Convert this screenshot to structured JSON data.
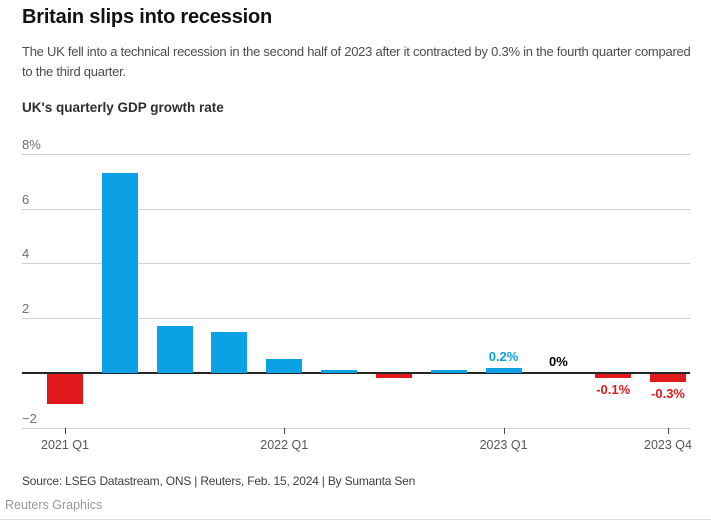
{
  "header": {
    "title": "Britain slips into recession",
    "subtitle": "The UK fell into a technical recession in the second half of 2023 after it contracted by 0.3% in the fourth quarter compared to the third quarter."
  },
  "chart_data": {
    "type": "bar",
    "title": "UK's quarterly GDP growth rate",
    "unit": "%",
    "categories": [
      "2021 Q1",
      "2021 Q2",
      "2021 Q3",
      "2021 Q4",
      "2022 Q1",
      "2022 Q2",
      "2022 Q3",
      "2022 Q4",
      "2023 Q1",
      "2023 Q2",
      "2023 Q3",
      "2023 Q4"
    ],
    "values": [
      -1.1,
      7.3,
      1.7,
      1.5,
      0.5,
      0.1,
      -0.1,
      0.1,
      0.2,
      0,
      -0.1,
      -0.3
    ],
    "ylim": [
      -2,
      8
    ],
    "grid": "horizontal",
    "legend": "none",
    "y_ticks": [
      {
        "value": 8,
        "label": "8%"
      },
      {
        "value": 6,
        "label": "6"
      },
      {
        "value": 4,
        "label": "4"
      },
      {
        "value": 2,
        "label": "2"
      },
      {
        "value": -2,
        "label": "−2"
      }
    ],
    "x_ticks": [
      {
        "index": 0,
        "label": "2021 Q1"
      },
      {
        "index": 4,
        "label": "2022 Q1"
      },
      {
        "index": 8,
        "label": "2023 Q1"
      },
      {
        "index": 11,
        "label": "2023 Q4"
      }
    ],
    "annotations": [
      {
        "index": 8,
        "text": "0.2%",
        "placement": "above",
        "color_role": "positive"
      },
      {
        "index": 9,
        "text": "0%",
        "placement": "above",
        "color_role": "zero"
      },
      {
        "index": 10,
        "text": "-0.1%",
        "placement": "below",
        "color_role": "negative"
      },
      {
        "index": 11,
        "text": "-0.3%",
        "placement": "below",
        "color_role": "negative"
      }
    ],
    "colors": {
      "positive": "#0aa2e4",
      "negative": "#e1191c",
      "zero": "#000000",
      "gridline": "#cfcfcf",
      "zero_axis": "#262626"
    }
  },
  "footer": {
    "source": "Source: LSEG Datastream, ONS | Reuters, Feb. 15, 2024 | By Sumanta Sen",
    "credit": "Reuters Graphics"
  }
}
